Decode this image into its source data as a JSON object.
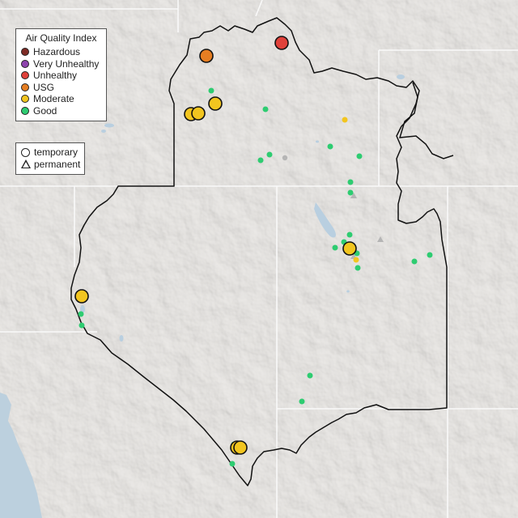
{
  "legend": {
    "title": "Air Quality Index",
    "categories": [
      {
        "label": "Hazardous",
        "color": "#7e2b25"
      },
      {
        "label": "Very Unhealthy",
        "color": "#8e44ad"
      },
      {
        "label": "Unhealthy",
        "color": "#e0413a"
      },
      {
        "label": "USG",
        "color": "#e67e22"
      },
      {
        "label": "Moderate",
        "color": "#f2c51f"
      },
      {
        "label": "Good",
        "color": "#2ecc71"
      }
    ]
  },
  "site_legend": {
    "temporary_label": "temporary",
    "permanent_label": "permanent"
  },
  "colors": {
    "land": "#e9e7e4",
    "ocean": "#bcd0de",
    "lake": "#b9cfe0",
    "border": "#111111",
    "state_line": "#f9f9f9",
    "monitor_gray": "#b5b5b5"
  }
}
